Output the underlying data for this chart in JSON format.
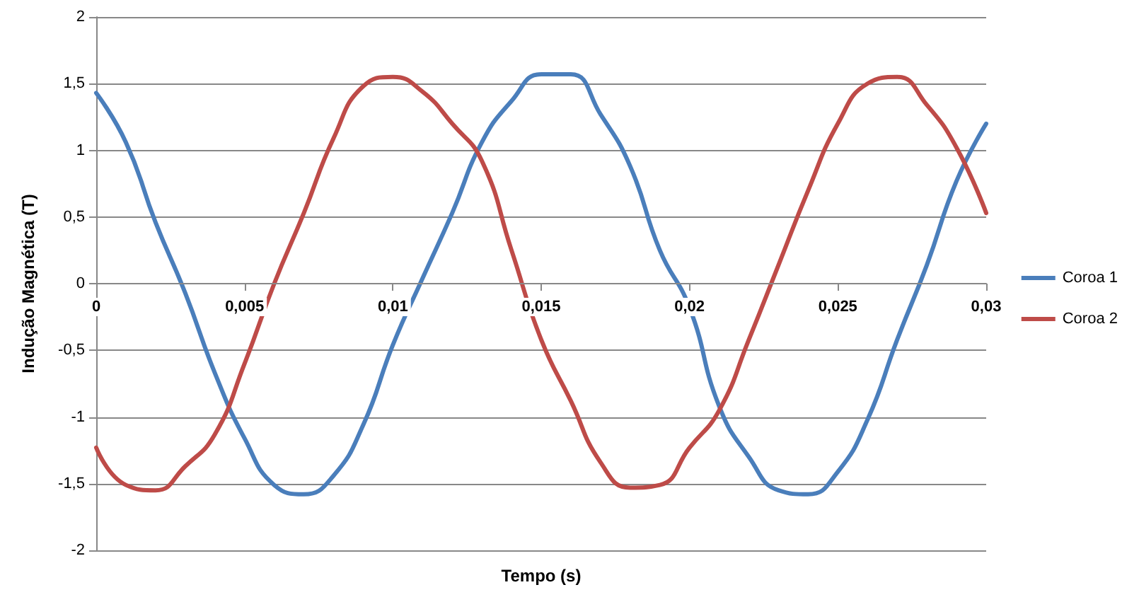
{
  "chart_data": {
    "type": "line",
    "xlabel": "Tempo (s)",
    "ylabel": "Indução Magnética (T)",
    "x": [
      0,
      0.001,
      0.002,
      0.003,
      0.004,
      0.005,
      0.006,
      0.007,
      0.008,
      0.009,
      0.01,
      0.011,
      0.012,
      0.013,
      0.014,
      0.015,
      0.016,
      0.017,
      0.018,
      0.019,
      0.02,
      0.021,
      0.022,
      0.023,
      0.024,
      0.025,
      0.026,
      0.027,
      0.028,
      0.029,
      0.03
    ],
    "series": [
      {
        "name": "Coroa 1",
        "color": "#4a7ebb",
        "values": [
          1.43,
          1.06,
          0.46,
          -0.07,
          -0.67,
          -1.16,
          -1.51,
          -1.58,
          -1.44,
          -1.06,
          -0.46,
          0.04,
          0.53,
          1.06,
          1.37,
          1.57,
          1.57,
          1.27,
          0.88,
          0.25,
          -0.18,
          -0.92,
          -1.3,
          -1.55,
          -1.58,
          -1.41,
          -1.02,
          -0.42,
          0.14,
          0.77,
          1.2
        ]
      },
      {
        "name": "Coroa 2",
        "color": "#be4b48",
        "values": [
          -1.23,
          -1.51,
          -1.55,
          -1.37,
          -1.13,
          -0.6,
          0,
          0.53,
          1.09,
          1.48,
          1.55,
          1.44,
          1.2,
          0.92,
          0.25,
          -0.42,
          -0.88,
          -1.34,
          -1.53,
          -1.51,
          -1.23,
          -0.95,
          -0.42,
          0.14,
          0.7,
          1.2,
          1.5,
          1.55,
          1.34,
          1.02,
          0.53
        ]
      }
    ],
    "xlim": [
      0,
      0.03
    ],
    "xticks": [
      0,
      {
        "value": 0.005,
        "label": "0,005"
      },
      {
        "value": 0.01,
        "label": "0,01"
      },
      {
        "value": 0.015,
        "label": "0,015"
      },
      {
        "value": 0.02,
        "label": "0,02"
      },
      {
        "value": 0.025,
        "label": "0,025"
      },
      {
        "value": 0.03,
        "label": "0,03"
      }
    ],
    "ylim": [
      -2,
      2
    ],
    "yticks": [
      -2,
      {
        "value": -1.5,
        "label": "-1,5"
      },
      -1,
      {
        "value": -0.5,
        "label": "-0,5"
      },
      0,
      {
        "value": 0.5,
        "label": "0,5"
      },
      1,
      {
        "value": 1.5,
        "label": "1,5"
      },
      2
    ],
    "grid": "y",
    "legend": "right",
    "marker": "none",
    "line_style": "solid"
  }
}
